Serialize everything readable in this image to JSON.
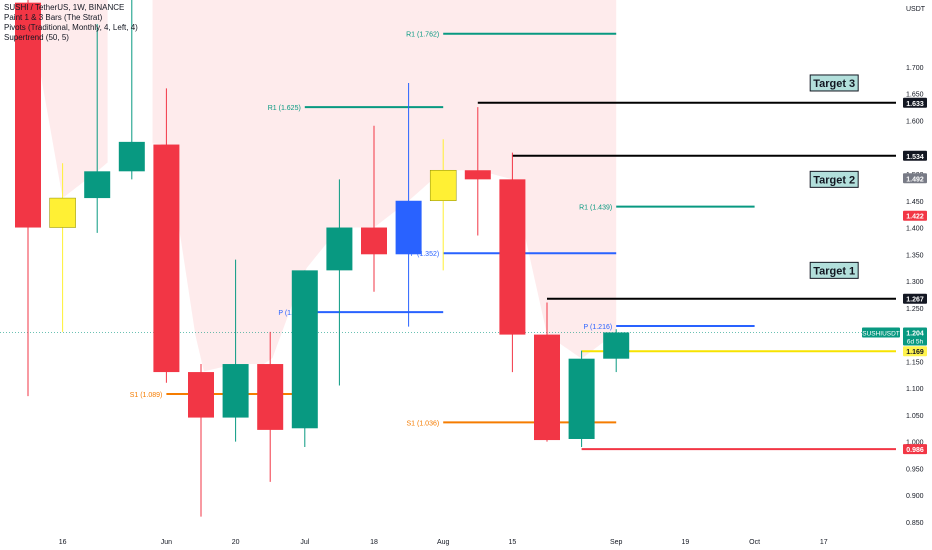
{
  "legend": {
    "symbol_line": "SUSHI / TetherUS, 1W, BINANCE",
    "indicators": [
      "Paint 1 & 3 Bars (The Strat)",
      "Pivots (Traditional, Monthly, 4, Left, 4)",
      "Supertrend (50, 5)"
    ]
  },
  "chart_data": {
    "type": "candlestick",
    "symbol": "SUSHI / TetherUS",
    "interval": "1W",
    "exchange": "BINANCE",
    "y_axis_unit": "USDT",
    "ylim": [
      0.835,
      1.825
    ],
    "y_ticks": [
      0.85,
      0.9,
      0.95,
      1.0,
      1.05,
      1.1,
      1.15,
      1.25,
      1.3,
      1.35,
      1.4,
      1.45,
      1.5,
      1.6,
      1.65,
      1.7
    ],
    "x_ticks": [
      {
        "label": "16",
        "index": 1
      },
      {
        "label": "Jun",
        "index": 4
      },
      {
        "label": "20",
        "index": 6
      },
      {
        "label": "Jul",
        "index": 8
      },
      {
        "label": "18",
        "index": 10
      },
      {
        "label": "Aug",
        "index": 12
      },
      {
        "label": "15",
        "index": 14
      },
      {
        "label": "Sep",
        "index": 17
      },
      {
        "label": "19",
        "index": 19
      },
      {
        "label": "Oct",
        "index": 21
      },
      {
        "label": "17",
        "index": 23
      }
    ],
    "candles": [
      {
        "i": 0,
        "open": 1.82,
        "high": 1.83,
        "low": 1.085,
        "close": 1.4,
        "color": "red"
      },
      {
        "i": 1,
        "open": 1.4,
        "high": 1.52,
        "low": 1.205,
        "close": 1.455,
        "color": "yellow"
      },
      {
        "i": 2,
        "open": 1.455,
        "high": 1.78,
        "low": 1.39,
        "close": 1.505,
        "color": "green"
      },
      {
        "i": 3,
        "open": 1.505,
        "high": 1.83,
        "low": 1.49,
        "close": 1.56,
        "color": "green"
      },
      {
        "i": 4,
        "open": 1.555,
        "high": 1.66,
        "low": 1.11,
        "close": 1.13,
        "color": "red"
      },
      {
        "i": 5,
        "open": 1.13,
        "high": 1.145,
        "low": 0.86,
        "close": 1.045,
        "color": "red"
      },
      {
        "i": 6,
        "open": 1.045,
        "high": 1.34,
        "low": 1.0,
        "close": 1.145,
        "color": "green"
      },
      {
        "i": 7,
        "open": 1.145,
        "high": 1.205,
        "low": 0.925,
        "close": 1.022,
        "color": "red"
      },
      {
        "i": 8,
        "open": 1.025,
        "high": 1.32,
        "low": 0.99,
        "close": 1.32,
        "color": "green"
      },
      {
        "i": 9,
        "open": 1.32,
        "high": 1.49,
        "low": 1.105,
        "close": 1.4,
        "color": "green"
      },
      {
        "i": 10,
        "open": 1.4,
        "high": 1.59,
        "low": 1.28,
        "close": 1.35,
        "color": "red"
      },
      {
        "i": 11,
        "open": 1.35,
        "high": 1.67,
        "low": 1.215,
        "close": 1.45,
        "color": "blue"
      },
      {
        "i": 12,
        "open": 1.45,
        "high": 1.565,
        "low": 1.32,
        "close": 1.507,
        "color": "yellow"
      },
      {
        "i": 13,
        "open": 1.507,
        "high": 1.625,
        "low": 1.385,
        "close": 1.49,
        "color": "red"
      },
      {
        "i": 14,
        "open": 1.49,
        "high": 1.54,
        "low": 1.13,
        "close": 1.2,
        "color": "red"
      },
      {
        "i": 15,
        "open": 1.2,
        "high": 1.26,
        "low": 1.0,
        "close": 1.003,
        "color": "red"
      },
      {
        "i": 16,
        "open": 1.005,
        "high": 1.17,
        "low": 0.99,
        "close": 1.155,
        "color": "green"
      },
      {
        "i": 17,
        "open": 1.155,
        "high": 1.21,
        "low": 1.13,
        "close": 1.204,
        "color": "green"
      }
    ],
    "supertrend_bands": [
      {
        "label": "Supertrend (50, 5)",
        "from": 0.0,
        "to": 2.3,
        "upper": 1.83,
        "lower": "body_top"
      },
      {
        "label": "Supertrend (50, 5)",
        "from": 3.6,
        "to": 13.5,
        "upper": 1.83,
        "lower": "body_top"
      },
      {
        "label": "Supertrend (50, 5)",
        "from": 13.5,
        "to": 17.0,
        "upper": 1.83,
        "lower": "body_top"
      }
    ],
    "pivot_levels": [
      {
        "label": "R1 (1.762)",
        "value": 1.762,
        "from": 12.0,
        "to": 17.0,
        "color": "#089981"
      },
      {
        "label": "R1 (1.625)",
        "value": 1.625,
        "from": 8.0,
        "to": 12.0,
        "color": "#089981"
      },
      {
        "label": "R1 (1.439)",
        "value": 1.439,
        "from": 17.0,
        "to": 21.0,
        "color": "#089981"
      },
      {
        "label": "P (1.352)",
        "value": 1.352,
        "from": 12.0,
        "to": 17.0,
        "color": "#2962ff"
      },
      {
        "label": "P (1.24",
        "value": 1.242,
        "from": 8.0,
        "to": 12.0,
        "color": "#2962ff"
      },
      {
        "label": "P (1.216)",
        "value": 1.216,
        "from": 17.0,
        "to": 21.0,
        "color": "#2962ff"
      },
      {
        "label": "S1 (1.089)",
        "value": 1.089,
        "from": 4.0,
        "to": 8.0,
        "color": "#f57c00"
      },
      {
        "label": "S1 (1.036)",
        "value": 1.036,
        "from": 12.0,
        "to": 17.0,
        "color": "#f57c00"
      }
    ],
    "target_lines": [
      {
        "value": 1.633,
        "from": 13.0,
        "color": "#000000"
      },
      {
        "value": 1.534,
        "from": 14.0,
        "color": "#000000"
      },
      {
        "value": 1.267,
        "from": 15.0,
        "color": "#000000"
      },
      {
        "value": 1.169,
        "from": 16.0,
        "color": "#f7e300"
      },
      {
        "value": 0.986,
        "from": 16.0,
        "color": "#f23645"
      }
    ],
    "current_price_line": {
      "value": 1.204,
      "color": "#089981"
    },
    "targets": [
      {
        "label": "Target 3",
        "value": 1.67,
        "index": 23.3
      },
      {
        "label": "Target 2",
        "value": 1.49,
        "index": 23.3
      },
      {
        "label": "Target 1",
        "value": 1.32,
        "index": 23.3
      }
    ],
    "price_labels": [
      {
        "text": "1.633",
        "value": 1.633,
        "bg": "#131722",
        "fg": "#ffffff"
      },
      {
        "text": "1.534",
        "value": 1.534,
        "bg": "#131722",
        "fg": "#ffffff"
      },
      {
        "text": "1.492",
        "value": 1.492,
        "bg": "#787b86",
        "fg": "#ffffff"
      },
      {
        "text": "1.422",
        "value": 1.422,
        "bg": "#f23645",
        "fg": "#ffffff"
      },
      {
        "text": "1.267",
        "value": 1.267,
        "bg": "#131722",
        "fg": "#ffffff"
      },
      {
        "text": "1.169",
        "value": 1.169,
        "bg": "#fff34d",
        "fg": "#131722"
      },
      {
        "text": "0.986",
        "value": 0.986,
        "bg": "#f23645",
        "fg": "#ffffff"
      }
    ],
    "current_price_tag": {
      "symbol": "SUSHIUSDT",
      "price": "1.204",
      "countdown": "6d 5h",
      "value": 1.204
    }
  },
  "colors": {
    "up": "#089981",
    "down": "#f23645",
    "strat_inside": "#fff034",
    "strat_outside": "#2962ff",
    "band_fill": "rgba(242,54,69,0.10)",
    "axis_text": "#131722",
    "target_box_bg": "#b2dfdb"
  }
}
